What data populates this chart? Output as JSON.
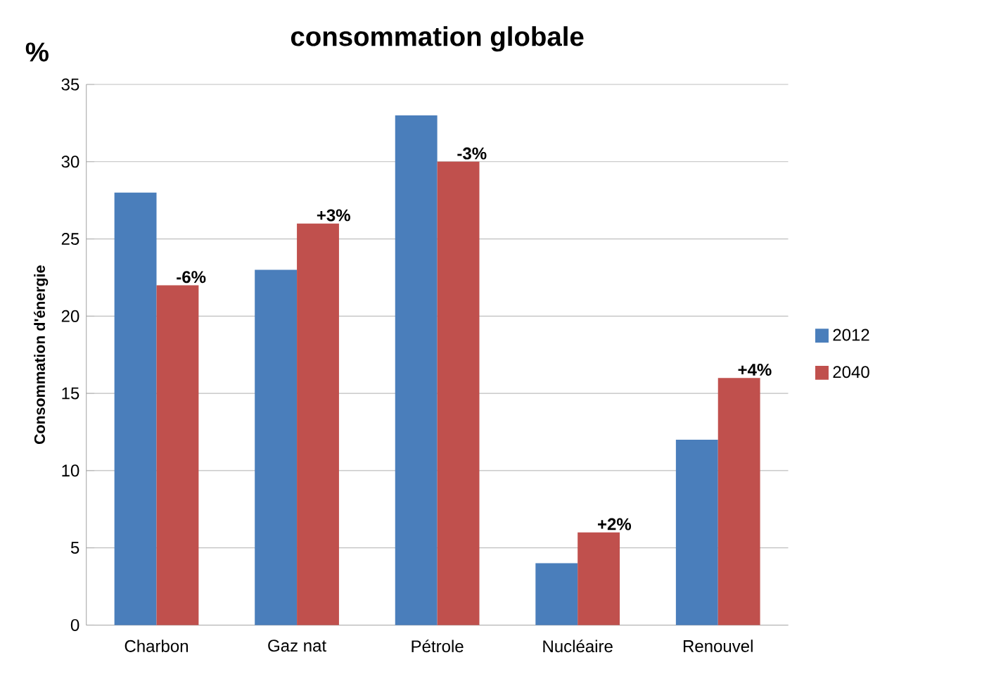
{
  "chart_data": {
    "type": "bar",
    "title": "consommation globale",
    "ylabel": "Consommation d'énergie",
    "categories": [
      "Charbon",
      "Gaz nat",
      "Pétrole",
      "Nucléaire",
      "Renouvel"
    ],
    "series": [
      {
        "name": "2012",
        "color": "#4a7ebb",
        "values": [
          28,
          23,
          33,
          4,
          12
        ]
      },
      {
        "name": "2040",
        "color": "#c0504d",
        "values": [
          22,
          26,
          30,
          6,
          16
        ]
      }
    ],
    "ylim": [
      0,
      35
    ],
    "yticks": [
      0,
      5,
      10,
      15,
      20,
      25,
      30,
      35
    ],
    "grid": "y",
    "legend": "right",
    "annotations": [
      "%",
      {
        "text": "-6%",
        "x": "Charbon",
        "y": 22
      },
      {
        "text": "+3%",
        "x": "Gaz nat",
        "y": 26
      },
      {
        "text": "-3%",
        "x": "Pétrole",
        "y": 30
      },
      {
        "text": "+2%",
        "x": "Nucléaire",
        "y": 6
      },
      {
        "text": "+4%",
        "x": "Renouvel",
        "y": 16
      }
    ]
  }
}
